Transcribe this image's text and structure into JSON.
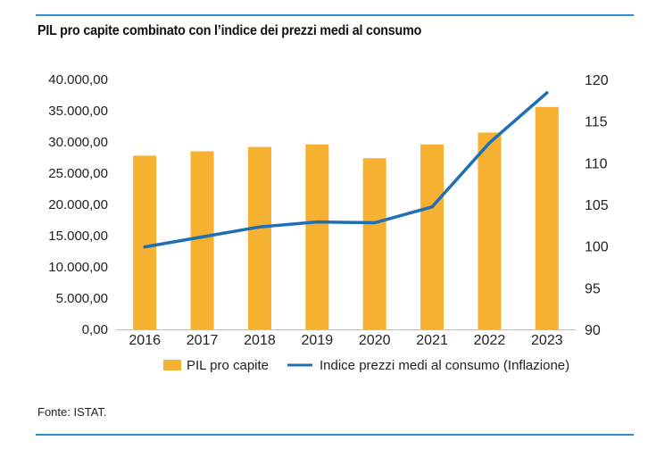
{
  "page": {
    "title": "PIL pro capite combinato con l’indice dei prezzi medi al consumo",
    "source": "Fonte: ISTAT."
  },
  "colors": {
    "rule": "#2e8fd0",
    "bar": "#f6b132",
    "line": "#1f6fb4"
  },
  "chart_data": {
    "type": "bar",
    "title": "PIL pro capite combinato con l’indice dei prezzi medi al consumo",
    "categories": [
      "2016",
      "2017",
      "2018",
      "2019",
      "2020",
      "2021",
      "2022",
      "2023"
    ],
    "series": [
      {
        "name": "PIL pro capite",
        "type": "bar",
        "axis": "left",
        "values": [
          27800,
          28500,
          29200,
          29600,
          27400,
          29600,
          31500,
          35600
        ]
      },
      {
        "name": "Indice prezzi medi al consumo (Inflazione)",
        "type": "line",
        "axis": "right",
        "values": [
          99.9,
          101.1,
          102.3,
          102.9,
          102.8,
          104.7,
          112.4,
          118.4
        ]
      }
    ],
    "y_left": {
      "min": 0,
      "max": 40000,
      "ticks": [
        0,
        5000,
        10000,
        15000,
        20000,
        25000,
        30000,
        35000,
        40000
      ],
      "tick_labels": [
        "0,00",
        "5.000,00",
        "10.000,00",
        "15.000,00",
        "20.000,00",
        "25.000,00",
        "30.000,00",
        "35.000,00",
        "40.000,00"
      ]
    },
    "y_right": {
      "min": 90,
      "max": 120,
      "ticks": [
        90,
        95,
        100,
        105,
        110,
        115,
        120
      ],
      "tick_labels": [
        "90",
        "95",
        "100",
        "105",
        "110",
        "115",
        "120"
      ]
    },
    "grid": false,
    "legend": {
      "position": "bottom",
      "items": [
        {
          "label": "PIL pro capite",
          "kind": "bar"
        },
        {
          "label": "Indice prezzi medi al consumo (Inflazione)",
          "kind": "line"
        }
      ]
    }
  }
}
